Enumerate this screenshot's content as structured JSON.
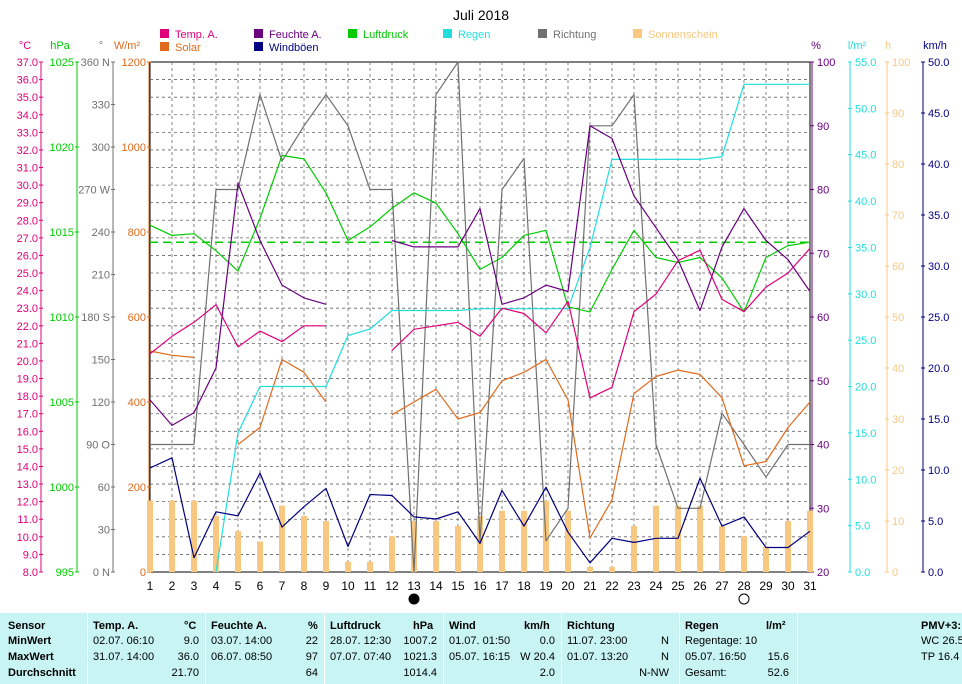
{
  "chart_data": {
    "type": "line",
    "title": "Juli 2018",
    "x": [
      1,
      2,
      3,
      4,
      5,
      6,
      7,
      8,
      9,
      10,
      11,
      12,
      13,
      14,
      15,
      16,
      17,
      18,
      19,
      20,
      21,
      22,
      23,
      24,
      25,
      26,
      27,
      28,
      29,
      30,
      31
    ],
    "moon_phases": [
      {
        "day": 13,
        "phase": "new"
      },
      {
        "day": 28,
        "phase": "full"
      }
    ],
    "axes": [
      {
        "id": "temp",
        "unit": "°C",
        "color": "#e0007a",
        "min": 8,
        "max": 37,
        "ticks": [
          8.0,
          9.0,
          10.0,
          11.0,
          12.0,
          13.0,
          14.0,
          15.0,
          16.0,
          17.0,
          18.0,
          19.0,
          20.0,
          21.0,
          22.0,
          23.0,
          24.0,
          25.0,
          26.0,
          27.0,
          28.0,
          29.0,
          30.0,
          31.0,
          32.0,
          33.0,
          34.0,
          35.0,
          36.0,
          37.0
        ]
      },
      {
        "id": "pressure",
        "unit": "hPa",
        "color": "#00cc00",
        "min": 995,
        "max": 1025,
        "ticks": [
          995,
          1000,
          1005,
          1010,
          1015,
          1020,
          1025
        ]
      },
      {
        "id": "direction",
        "unit": "°",
        "color": "#707070",
        "min": 0,
        "max": 360,
        "ticks": [
          0,
          30,
          60,
          90,
          120,
          150,
          180,
          210,
          240,
          270,
          300,
          330,
          360
        ],
        "labels": {
          "0": "N",
          "90": "O",
          "180": "S",
          "270": "W",
          "360": "N"
        }
      },
      {
        "id": "solar",
        "unit": "W/m²",
        "color": "#e06a1a",
        "min": 0,
        "max": 1200,
        "ticks": [
          0,
          200,
          400,
          600,
          800,
          1000,
          1200
        ]
      },
      {
        "id": "humidity",
        "unit": "%",
        "color": "#6a0080",
        "min": 20,
        "max": 100,
        "ticks": [
          20,
          30,
          40,
          50,
          60,
          70,
          80,
          90,
          100
        ]
      },
      {
        "id": "rain",
        "unit": "l/m²",
        "color": "#22dddd",
        "min": 0,
        "max": 55,
        "ticks": [
          0.0,
          5.0,
          10.0,
          15.0,
          20.0,
          25.0,
          30.0,
          35.0,
          40.0,
          45.0,
          50.0,
          55.0
        ]
      },
      {
        "id": "sun",
        "unit": "h",
        "color": "#f8c880",
        "min": 0,
        "max": 100,
        "ticks": [
          0,
          10,
          20,
          30,
          40,
          50,
          60,
          70,
          80,
          90,
          100
        ]
      },
      {
        "id": "wind",
        "unit": "km/h",
        "color": "#000080",
        "min": 0,
        "max": 50,
        "ticks": [
          0.0,
          5.0,
          10.0,
          15.0,
          20.0,
          25.0,
          30.0,
          35.0,
          40.0,
          45.0,
          50.0
        ]
      }
    ],
    "series": [
      {
        "name": "Temp. A.",
        "axis": "temp",
        "color": "#e0007a",
        "values": [
          20.4,
          21.4,
          22.2,
          23.2,
          20.8,
          21.7,
          21.1,
          22.0,
          22.0,
          null,
          null,
          20.6,
          21.8,
          22.0,
          22.2,
          21.4,
          23.0,
          22.7,
          21.6,
          23.4,
          17.9,
          18.5,
          22.8,
          23.8,
          25.7,
          26.3,
          23.5,
          22.8,
          24.2,
          25.0,
          26.4
        ]
      },
      {
        "name": "Solar",
        "axis": "solar",
        "color": "#e06a1a",
        "values": [
          520,
          510,
          505,
          null,
          300,
          340,
          500,
          470,
          400,
          null,
          null,
          370,
          400,
          430,
          360,
          375,
          450,
          470,
          500,
          405,
          80,
          170,
          420,
          460,
          475,
          465,
          410,
          250,
          260,
          340,
          400
        ]
      },
      {
        "name": "Feuchte A.",
        "axis": "humidity",
        "color": "#6a0080",
        "values": [
          47,
          43,
          45,
          52,
          81,
          72,
          65,
          63,
          62,
          null,
          null,
          72,
          71,
          71,
          71,
          77,
          62,
          63,
          65,
          64,
          90,
          88,
          79,
          74,
          69,
          61,
          71,
          77,
          72,
          69,
          64
        ]
      },
      {
        "name": "Luftdruck",
        "axis": "pressure",
        "color": "#00cc00",
        "values": [
          1015.4,
          1014.8,
          1014.9,
          1013.9,
          1012.7,
          1015.8,
          1019.5,
          1019.3,
          1017.3,
          1014.5,
          1015.3,
          1016.4,
          1017.3,
          1016.7,
          1014.9,
          1012.8,
          1013.5,
          1014.8,
          1015.1,
          1010.6,
          1010.3,
          1012.8,
          1015.1,
          1013.5,
          1013.2,
          1013.5,
          1012.3,
          1010.3,
          1013.5,
          1014.2,
          1014.4
        ]
      },
      {
        "name": "Regen",
        "axis": "rain",
        "color": "#22dddd",
        "values": [
          null,
          null,
          null,
          0.0,
          15.0,
          20.0,
          20.0,
          20.0,
          20.0,
          25.5,
          26.2,
          28.2,
          28.2,
          28.2,
          28.2,
          28.4,
          28.4,
          28.4,
          28.4,
          28.4,
          35.0,
          44.5,
          44.5,
          44.5,
          44.5,
          44.5,
          44.8,
          52.6,
          52.6,
          52.6,
          52.6
        ]
      },
      {
        "name": "Richtung",
        "axis": "direction",
        "color": "#707070",
        "values": [
          90,
          90,
          90,
          270,
          270,
          337,
          290,
          315,
          337,
          315,
          270,
          270,
          0,
          337,
          360,
          22,
          270,
          292,
          22,
          45,
          315,
          315,
          337,
          90,
          45,
          45,
          112,
          90,
          67,
          90,
          90
        ]
      },
      {
        "name": "Sonnenschein",
        "axis": "sun",
        "color": "#f8c880",
        "type": "bar",
        "values": [
          14,
          14,
          14,
          11,
          8,
          6,
          13,
          11,
          10,
          2,
          2,
          7,
          10,
          10,
          9,
          11,
          12,
          12,
          14,
          12,
          1,
          1,
          9,
          13,
          13,
          13,
          9,
          7,
          5,
          10,
          12
        ]
      },
      {
        "name": "Windböen",
        "axis": "wind",
        "color": "#000080",
        "values": [
          10.2,
          11.2,
          1.4,
          5.9,
          5.5,
          9.7,
          4.4,
          6.4,
          8.2,
          2.5,
          7.6,
          7.5,
          5.4,
          5.2,
          5.9,
          2.8,
          8.0,
          4.5,
          8.3,
          3.9,
          0.9,
          3.3,
          2.9,
          3.3,
          3.3,
          9.2,
          4.5,
          5.4,
          2.4,
          2.4,
          4.0
        ]
      }
    ],
    "average_line": {
      "name": "Luftdruck Durchschnitt",
      "axis": "pressure",
      "color": "#00cc00",
      "style": "dashed",
      "value": 1014.4
    }
  },
  "summary": {
    "sensor": {
      "header": "Sensor",
      "rows": [
        "MinWert",
        "MaxWert",
        "Durchschnitt"
      ]
    },
    "temp": {
      "header": "Temp. A.",
      "unit": "°C",
      "min_date": "02.07.  06:10",
      "min_val": "9.0",
      "max_date": "31.07.  14:00",
      "max_val": "36.0",
      "avg": "21.70"
    },
    "humidity": {
      "header": "Feuchte A.",
      "unit": "%",
      "min_date": "03.07.  14:00",
      "min_val": "22",
      "max_date": "06.07.  08:50",
      "max_val": "97",
      "avg": "64"
    },
    "pressure": {
      "header": "Luftdruck",
      "unit": "hPa",
      "min_date": "28.07.  12:30",
      "min_val": "1007.2",
      "max_date": "07.07.  07:40",
      "max_val": "1021.3",
      "avg": "1014.4"
    },
    "wind": {
      "header": "Wind",
      "unit": "km/h",
      "min_date": "01.07.  01:50",
      "min_val": "0.0",
      "max_date": "05.07.  16:15",
      "max_val": "W 20.4",
      "avg": "2.0"
    },
    "direction": {
      "header": "Richtung",
      "min_date": "11.07.  23:00",
      "min_val": "N",
      "max_date": "01.07.  13:20",
      "max_val": "N",
      "avg": "N-NW"
    },
    "rain": {
      "header": "Regen",
      "unit": "l/m²",
      "row1": "Regentage: 10",
      "row2_date": "05.07.  16:50",
      "row2_val": "15.6",
      "row3_label": "Gesamt:",
      "row3_val": "52.6"
    },
    "pmv": {
      "header": "PMV+3:",
      "row1": "WC 26.5",
      "row2": "TP 16.4"
    }
  }
}
